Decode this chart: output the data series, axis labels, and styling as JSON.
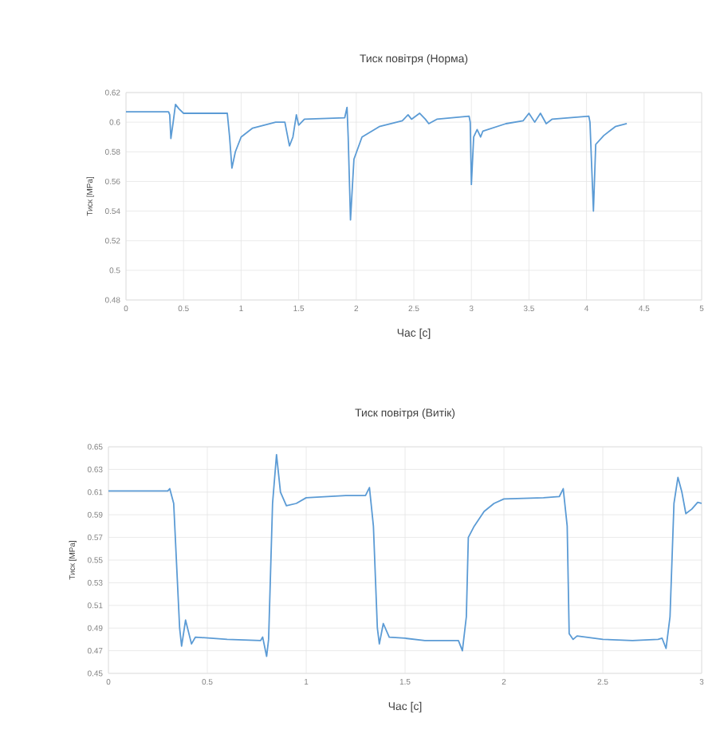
{
  "chart_data": [
    {
      "type": "line",
      "title": "Тиск повітря (Норма)",
      "xlabel": "Час [с]",
      "ylabel": "Тиск [MPa]",
      "xlim": [
        0,
        5
      ],
      "xticks": [
        0,
        0.5,
        1,
        1.5,
        2,
        2.5,
        3,
        3.5,
        4,
        4.5,
        5
      ],
      "ylim": [
        0.48,
        0.62
      ],
      "yticks": [
        0.48,
        0.5,
        0.52,
        0.54,
        0.56,
        0.58,
        0.6,
        0.62
      ],
      "grid": true,
      "series": [
        {
          "color": "#5b9bd5",
          "x": [
            0,
            0.37,
            0.38,
            0.39,
            0.41,
            0.43,
            0.46,
            0.5,
            0.88,
            0.9,
            0.92,
            0.95,
            1.0,
            1.1,
            1.3,
            1.38,
            1.42,
            1.45,
            1.48,
            1.5,
            1.55,
            1.9,
            1.92,
            1.93,
            1.95,
            1.98,
            2.05,
            2.2,
            2.4,
            2.45,
            2.48,
            2.55,
            2.6,
            2.63,
            2.7,
            2.98,
            2.99,
            3.0,
            3.02,
            3.05,
            3.08,
            3.1,
            3.3,
            3.45,
            3.5,
            3.55,
            3.6,
            3.65,
            3.7,
            4.02,
            4.03,
            4.06,
            4.08,
            4.15,
            4.25,
            4.35
          ],
          "values": [
            0.607,
            0.607,
            0.605,
            0.589,
            0.6,
            0.612,
            0.609,
            0.606,
            0.606,
            0.59,
            0.569,
            0.58,
            0.59,
            0.596,
            0.6,
            0.6,
            0.584,
            0.59,
            0.605,
            0.598,
            0.602,
            0.603,
            0.61,
            0.59,
            0.534,
            0.575,
            0.59,
            0.597,
            0.601,
            0.605,
            0.602,
            0.606,
            0.602,
            0.599,
            0.602,
            0.604,
            0.6,
            0.558,
            0.59,
            0.595,
            0.59,
            0.594,
            0.599,
            0.601,
            0.606,
            0.6,
            0.606,
            0.599,
            0.602,
            0.604,
            0.6,
            0.54,
            0.585,
            0.591,
            0.597,
            0.599
          ]
        }
      ]
    },
    {
      "type": "line",
      "title": "Тиск повітря (Витік)",
      "xlabel": "Час [с]",
      "ylabel": "Тиск [MPa]",
      "xlim": [
        0,
        3
      ],
      "xticks": [
        0,
        0.5,
        1,
        1.5,
        2,
        2.5,
        3
      ],
      "ylim": [
        0.45,
        0.65
      ],
      "yticks": [
        0.45,
        0.47,
        0.49,
        0.51,
        0.53,
        0.55,
        0.57,
        0.59,
        0.61,
        0.63,
        0.65
      ],
      "grid": true,
      "series": [
        {
          "color": "#5b9bd5",
          "x": [
            0,
            0.3,
            0.31,
            0.33,
            0.36,
            0.37,
            0.39,
            0.41,
            0.42,
            0.44,
            0.6,
            0.77,
            0.78,
            0.8,
            0.81,
            0.83,
            0.85,
            0.87,
            0.9,
            0.95,
            1.0,
            1.2,
            1.3,
            1.32,
            1.34,
            1.36,
            1.37,
            1.39,
            1.42,
            1.5,
            1.6,
            1.77,
            1.79,
            1.81,
            1.82,
            1.85,
            1.9,
            1.95,
            2.0,
            2.2,
            2.28,
            2.3,
            2.32,
            2.33,
            2.35,
            2.37,
            2.5,
            2.65,
            2.78,
            2.8,
            2.82,
            2.84,
            2.86,
            2.88,
            2.9,
            2.92,
            2.95,
            2.98,
            3.0
          ],
          "values": [
            0.611,
            0.611,
            0.613,
            0.6,
            0.49,
            0.474,
            0.497,
            0.483,
            0.476,
            0.482,
            0.48,
            0.479,
            0.482,
            0.465,
            0.48,
            0.6,
            0.643,
            0.61,
            0.598,
            0.6,
            0.605,
            0.607,
            0.607,
            0.614,
            0.58,
            0.49,
            0.476,
            0.494,
            0.482,
            0.481,
            0.479,
            0.479,
            0.47,
            0.5,
            0.57,
            0.58,
            0.593,
            0.6,
            0.604,
            0.605,
            0.606,
            0.613,
            0.58,
            0.485,
            0.48,
            0.483,
            0.48,
            0.479,
            0.48,
            0.481,
            0.472,
            0.5,
            0.6,
            0.623,
            0.61,
            0.591,
            0.595,
            0.601,
            0.6
          ]
        }
      ]
    }
  ]
}
